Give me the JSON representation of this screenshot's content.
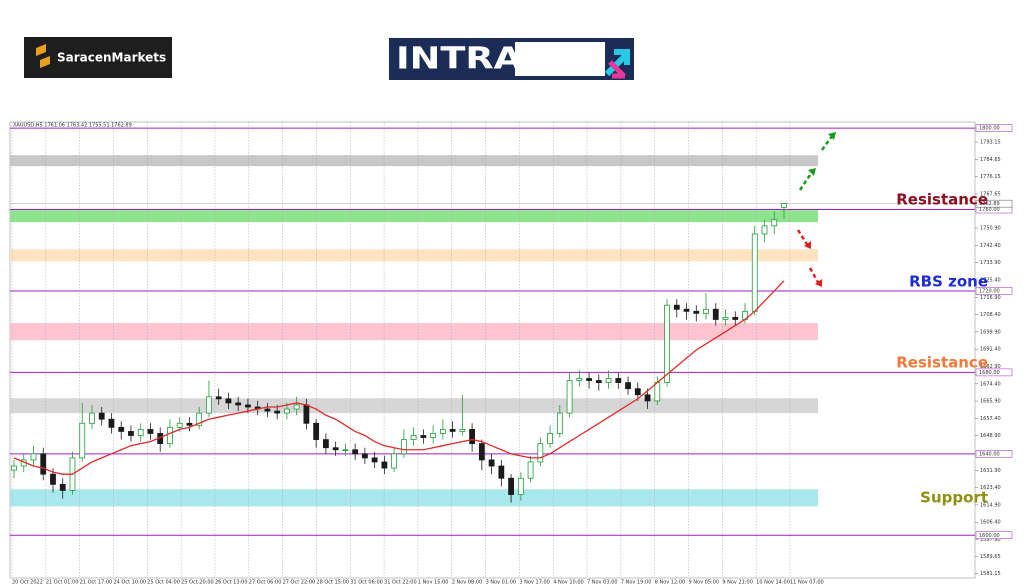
{
  "header": {
    "brand": "SaracenMarkets",
    "banner": "INTRADAY"
  },
  "chart_data": {
    "type": "candlestick",
    "symbol_info": "XAUUSD,H5  1761.06 1763.42 1755.51 1762.89",
    "categories": [
      "20 Oct 2022",
      "21 Oct 01:00",
      "21 Oct 17:00",
      "24 Oct 10:00",
      "25 Oct 04:00",
      "25 Oct 20:00",
      "26 Oct 13:00",
      "27 Oct 06:00",
      "27 Oct 22:00",
      "28 Oct 15:00",
      "31 Oct 06:00",
      "31 Oct 22:00",
      "1 Nov 15:00",
      "2 Nov 08:00",
      "3 Nov 01:00",
      "3 Nov 17:00",
      "4 Nov 10:00",
      "7 Nov 03:00",
      "7 Nov 19:00",
      "8 Nov 12:00",
      "9 Nov 05:00",
      "9 Nov 21:00",
      "10 Nov 14:00",
      "11 Nov 07:00"
    ],
    "grid": "vertical",
    "up_color": "#1f9e3a",
    "down_color": "#1b1b1b",
    "open": [
      1632,
      1634,
      1637,
      1640,
      1630,
      1625,
      1622,
      1638,
      1655,
      1660,
      1657,
      1653,
      1651,
      1649,
      1652,
      1650,
      1645,
      1653,
      1655,
      1654,
      1660,
      1668,
      1667,
      1665,
      1664,
      1663,
      1662,
      1661,
      1660,
      1662,
      1664,
      1655,
      1647,
      1643,
      1642,
      1642,
      1640,
      1638,
      1636,
      1633,
      1640,
      1647,
      1649,
      1648,
      1650,
      1652,
      1651,
      1652,
      1645,
      1637,
      1634,
      1628,
      1620,
      1628,
      1636,
      1645,
      1650,
      1660,
      1676,
      1677,
      1676,
      1675,
      1677,
      1675,
      1672,
      1669,
      1666,
      1675,
      1713,
      1711,
      1710,
      1709,
      1711,
      1706,
      1707,
      1706,
      1710,
      1748,
      1752,
      1761.06
    ],
    "high": [
      1637,
      1640,
      1644,
      1643,
      1633,
      1628,
      1641,
      1665,
      1664,
      1663,
      1660,
      1656,
      1654,
      1655,
      1655,
      1653,
      1657,
      1658,
      1658,
      1663,
      1676,
      1672,
      1670,
      1668,
      1667,
      1666,
      1665,
      1664,
      1665,
      1668,
      1667,
      1657,
      1650,
      1646,
      1645,
      1645,
      1643,
      1641,
      1639,
      1643,
      1652,
      1653,
      1652,
      1654,
      1657,
      1656,
      1669,
      1655,
      1647,
      1640,
      1637,
      1630,
      1631,
      1639,
      1648,
      1654,
      1664,
      1680,
      1681,
      1680,
      1679,
      1681,
      1680,
      1678,
      1675,
      1672,
      1678,
      1716,
      1716,
      1714,
      1713,
      1719,
      1714,
      1711,
      1710,
      1714,
      1752,
      1755,
      1759,
      1763.42
    ],
    "low": [
      1628,
      1631,
      1634,
      1627,
      1621,
      1618,
      1620,
      1636,
      1652,
      1654,
      1650,
      1647,
      1646,
      1646,
      1647,
      1641,
      1643,
      1651,
      1651,
      1652,
      1658,
      1664,
      1662,
      1661,
      1660,
      1659,
      1658,
      1657,
      1657,
      1659,
      1652,
      1643,
      1640,
      1639,
      1639,
      1637,
      1635,
      1633,
      1630,
      1631,
      1638,
      1644,
      1645,
      1645,
      1647,
      1648,
      1649,
      1641,
      1632,
      1630,
      1624,
      1616,
      1617,
      1626,
      1634,
      1643,
      1648,
      1658,
      1673,
      1672,
      1671,
      1672,
      1672,
      1669,
      1666,
      1662,
      1664,
      1673,
      1707,
      1706,
      1705,
      1706,
      1703,
      1703,
      1703,
      1704,
      1708,
      1744,
      1748,
      1755.51
    ],
    "close": [
      1634,
      1637,
      1640,
      1630,
      1625,
      1622,
      1638,
      1655,
      1660,
      1657,
      1653,
      1651,
      1649,
      1652,
      1650,
      1645,
      1653,
      1655,
      1654,
      1660,
      1668,
      1667,
      1665,
      1664,
      1663,
      1662,
      1661,
      1660,
      1662,
      1664,
      1655,
      1647,
      1643,
      1642,
      1642,
      1640,
      1638,
      1636,
      1633,
      1640,
      1647,
      1649,
      1648,
      1650,
      1652,
      1651,
      1652,
      1645,
      1637,
      1634,
      1628,
      1620,
      1628,
      1636,
      1645,
      1650,
      1660,
      1676,
      1677,
      1676,
      1675,
      1677,
      1675,
      1672,
      1669,
      1666,
      1675,
      1713,
      1711,
      1710,
      1709,
      1711,
      1706,
      1707,
      1706,
      1710,
      1748,
      1752,
      1755,
      1762.89
    ],
    "moving_average": {
      "color": "#e02b2b",
      "values": [
        1638,
        1636,
        1634,
        1633,
        1631,
        1630,
        1630,
        1633,
        1636,
        1638,
        1640,
        1642,
        1644,
        1645,
        1646,
        1648,
        1650,
        1652,
        1653,
        1655,
        1657,
        1658,
        1659,
        1660,
        1661,
        1662,
        1663,
        1663,
        1664,
        1665,
        1664,
        1662,
        1659,
        1657,
        1654,
        1651,
        1649,
        1646,
        1644,
        1643,
        1642,
        1642,
        1642,
        1643,
        1644,
        1645,
        1646,
        1647,
        1646,
        1644,
        1642,
        1640,
        1639,
        1638,
        1638,
        1640,
        1643,
        1646,
        1649,
        1652,
        1655,
        1658,
        1661,
        1664,
        1667,
        1671,
        1675,
        1679,
        1683,
        1687,
        1691,
        1694,
        1697,
        1700,
        1703,
        1706,
        1710,
        1715,
        1720,
        1725
      ]
    },
    "ylim": [
      1579,
      1803
    ],
    "yticks": [
      1793.15,
      1784.65,
      1776.15,
      1767.65,
      {
        "value": 1750.9,
        "label": "1750.90"
      },
      {
        "value": 1742.4,
        "label": "1742.40"
      },
      {
        "value": 1733.9,
        "label": "1733.90"
      },
      {
        "value": 1725.4,
        "label": "1725.40"
      },
      {
        "value": 1716.9,
        "label": "1716.90"
      },
      {
        "value": 1708.4,
        "label": "1708.40"
      },
      {
        "value": 1699.9,
        "label": "1699.90"
      },
      {
        "value": 1691.4,
        "label": "1691.40"
      },
      {
        "value": 1682.9,
        "label": "1682.90"
      },
      {
        "value": 1674.4,
        "label": "1674.40"
      },
      {
        "value": 1665.9,
        "label": "1665.90"
      },
      {
        "value": 1657.4,
        "label": "1657.40"
      },
      {
        "value": 1648.9,
        "label": "1648.90"
      },
      {
        "value": 1631.9,
        "label": "1631.90"
      },
      {
        "value": 1623.4,
        "label": "1623.40"
      },
      {
        "value": 1614.9,
        "label": "1614.90"
      },
      {
        "value": 1606.4,
        "label": "1606.40"
      },
      {
        "value": 1597.9,
        "label": "1597.90"
      },
      1589.65,
      1581.15
    ],
    "levels": {
      "color": "#a21fc4",
      "values": [
        {
          "value": 1800,
          "label": "1800.00"
        },
        {
          "value": 1760,
          "label": "1760.00"
        },
        {
          "value": 1720,
          "label": "1720.00"
        },
        {
          "value": 1680,
          "label": "1680.00"
        },
        {
          "value": 1640,
          "label": "1640.00"
        },
        {
          "value": 1600,
          "label": "1600.00"
        }
      ]
    },
    "last_price": 1762.89,
    "zones": [
      {
        "low": 1781.3,
        "high": 1786.7,
        "color": "#c8c8c8"
      },
      {
        "low": 1753.8,
        "high": 1759.7,
        "color": "#8fe28f"
      },
      {
        "low": 1734.6,
        "high": 1740.5,
        "color": "#fde3c0"
      },
      {
        "low": 1695.8,
        "high": 1704.2,
        "color": "#ffc4cf"
      },
      {
        "low": 1660,
        "high": 1667.3,
        "color": "#d6d6d6"
      },
      {
        "low": 1614.2,
        "high": 1622.6,
        "color": "#a8e8ec"
      }
    ],
    "annotations": [
      {
        "text": "Resistance",
        "color": "#8b1020"
      },
      {
        "text": "RBS zone",
        "color": "#1c2bd6"
      },
      {
        "text": "Resistance",
        "color": "#f07a3a"
      },
      {
        "text": "Support",
        "color": "#8f8f10"
      }
    ]
  }
}
